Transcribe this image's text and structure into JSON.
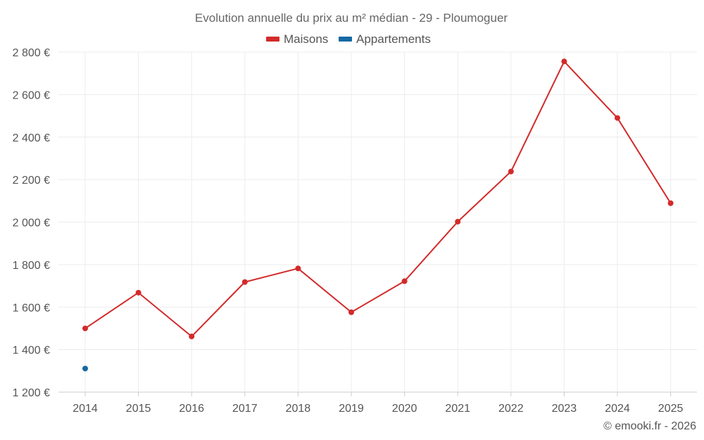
{
  "chart_data": {
    "type": "line",
    "title": "Evolution annuelle du prix au m² médian - 29 - Ploumoguer",
    "categories": [
      "2014",
      "2015",
      "2016",
      "2017",
      "2018",
      "2019",
      "2020",
      "2021",
      "2022",
      "2023",
      "2024",
      "2025"
    ],
    "series": [
      {
        "name": "Maisons",
        "color": "#d32a2a",
        "values": [
          1500,
          1668,
          1462,
          1718,
          1782,
          1576,
          1722,
          2002,
          2238,
          2756,
          2490,
          2089
        ]
      },
      {
        "name": "Appartements",
        "color": "#1569a3",
        "values": [
          1311,
          null,
          null,
          null,
          null,
          null,
          null,
          null,
          null,
          null,
          null,
          null
        ]
      }
    ],
    "ylim": [
      1200,
      2800
    ],
    "yticks": [
      1200,
      1400,
      1600,
      1800,
      2000,
      2200,
      2400,
      2600,
      2800
    ],
    "ytick_labels": [
      "1 200 €",
      "1 400 €",
      "1 600 €",
      "1 800 €",
      "2 000 €",
      "2 200 €",
      "2 400 €",
      "2 600 €",
      "2 800 €"
    ],
    "xlabel": "",
    "ylabel": "",
    "grid": true,
    "legend_position": "top-center"
  },
  "credit": "© emooki.fr - 2026"
}
